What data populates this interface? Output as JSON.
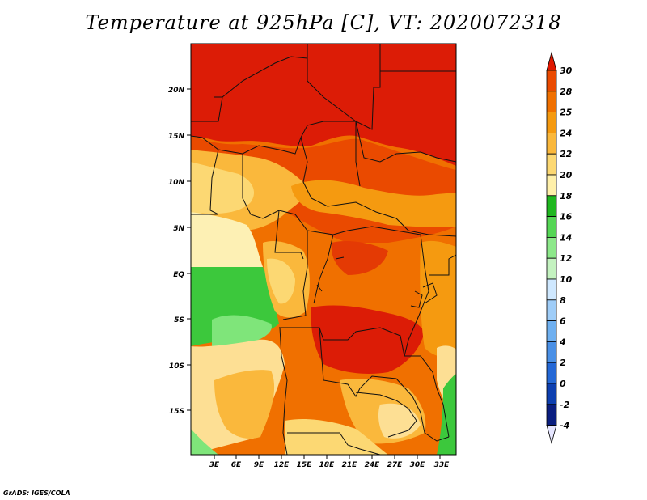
{
  "title": "Temperature at 925hPa [C], VT: 2020072318",
  "credit": "GrADS: IGES/COLA",
  "lat_labels": [
    "20N",
    "15N",
    "10N",
    "5N",
    "EQ",
    "5S",
    "10S",
    "15S"
  ],
  "lon_labels": [
    "3E",
    "6E",
    "9E",
    "12E",
    "15E",
    "18E",
    "21E",
    "24E",
    "27E",
    "30E",
    "33E"
  ],
  "colorbar": {
    "levels": [
      "30",
      "28",
      "25",
      "24",
      "22",
      "20",
      "18",
      "16",
      "14",
      "12",
      "10",
      "8",
      "6",
      "4",
      "2",
      "0",
      "-2",
      "-4"
    ],
    "colors": [
      "#e01800",
      "#ea4a00",
      "#f07000",
      "#f59a10",
      "#fab83c",
      "#fcd873",
      "#fff0aa",
      "#1fb71f",
      "#55d655",
      "#8de88a",
      "#c4f2c0",
      "#cfe8ff",
      "#9fcdf8",
      "#6fb0f0",
      "#4a90e6",
      "#2468d6",
      "#0d3fb0",
      "#0a1e80",
      "#0a1040"
    ]
  },
  "palette": {
    "hot": "#dc1c06",
    "orange": "#ef6a10",
    "light": "#f5a23c",
    "pale": "#fddf94",
    "green": "#3cc83c",
    "lightgreen": "#7fe57a",
    "border": "#111111"
  }
}
